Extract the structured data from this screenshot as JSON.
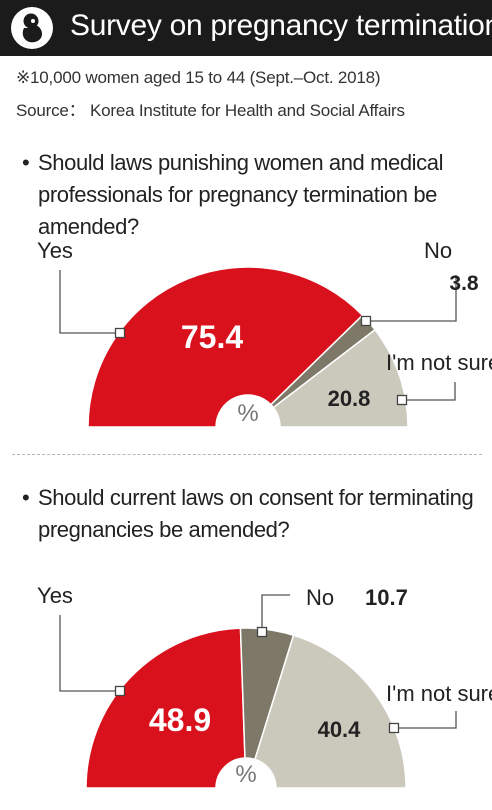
{
  "header": {
    "title": "Survey on pregnancy termination",
    "logo_icon": "fetus-icon"
  },
  "meta": {
    "sample": "※10,000 women aged 15 to 44 (Sept.–Oct. 2018)",
    "source": "Source： Korea Institute for Health and Social Affairs"
  },
  "questions": [
    {
      "bullet": "•",
      "text": "Should laws punishing women and medical professionals for pregnancy termination be amended?"
    },
    {
      "bullet": "•",
      "text": "Should current laws on consent for terminating pregnancies be amended?"
    }
  ],
  "colors": {
    "yes": "#d9111c",
    "no": "#7d7868",
    "not_sure": "#cbc8bc",
    "header_bg": "#1b1b1b"
  },
  "chart_data": [
    {
      "type": "pie",
      "style": "half-donut",
      "unit": "%",
      "categories": [
        "Yes",
        "No",
        "I'm not sure"
      ],
      "values": [
        75.4,
        3.8,
        20.8
      ],
      "value_labels": [
        "75.4",
        "3.8",
        "20.8"
      ]
    },
    {
      "type": "pie",
      "style": "half-donut",
      "unit": "%",
      "categories": [
        "Yes",
        "No",
        "I'm not sure"
      ],
      "values": [
        48.9,
        10.7,
        40.4
      ],
      "value_labels": [
        "48.9",
        "10.7",
        "40.4"
      ]
    }
  ]
}
